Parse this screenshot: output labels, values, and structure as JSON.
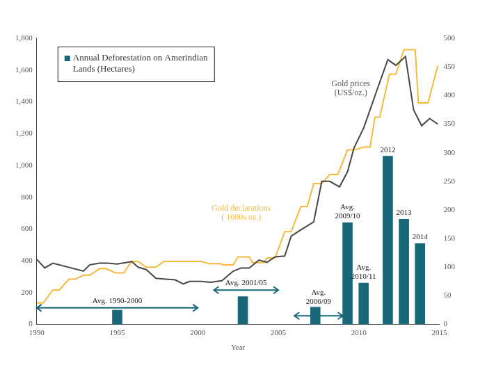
{
  "chart_data": {
    "type": "bar",
    "x_label": "Year",
    "xlim": [
      1990,
      2015
    ],
    "xticks": [
      1990,
      1995,
      2000,
      2005,
      2010,
      2015
    ],
    "ylim": [
      0,
      1800
    ],
    "yticks": [
      0,
      200,
      400,
      600,
      800,
      {
        "value": 1000,
        "label": "1,000"
      },
      {
        "value": 1200,
        "label": "1,200"
      },
      {
        "value": 1400,
        "label": "1,400"
      },
      {
        "value": 1600,
        "label": "1,600"
      },
      {
        "value": 1800,
        "label": "1,800"
      }
    ],
    "y2lim": [
      0,
      500
    ],
    "y2ticks": [
      0,
      50,
      100,
      150,
      200,
      250,
      300,
      350,
      400,
      450,
      500
    ],
    "grid": false,
    "legend": "upper left",
    "series": [
      {
        "name": "Annual Deforestation on Amerindian Lands (Hectares)",
        "type": "bar",
        "color": "#18687a",
        "x": [
          1995,
          2002.8,
          2007.3,
          2009.3,
          2010.3,
          2011.8,
          2012.8,
          2013.8
        ],
        "values": [
          90,
          175,
          108,
          640,
          260,
          1058,
          662,
          508
        ],
        "labels": [
          null,
          null,
          null,
          [
            "Avg.",
            "2009/10"
          ],
          [
            "Avg.",
            "2010/11"
          ],
          [
            "2012"
          ],
          [
            "2013"
          ],
          [
            "2014"
          ]
        ]
      },
      {
        "type": "line",
        "color": "#4b4542",
        "marker": "none",
        "line_style": "solid",
        "x": [
          1990,
          1990.5,
          1991,
          1992.9,
          1993.3,
          1993.9,
          1994.4,
          1995,
          1995.9,
          1996.3,
          1996.8,
          1997.4,
          1998,
          1998.6,
          1999.1,
          1999.5,
          2000.2,
          2000.8,
          2001.5,
          2002.2,
          2002.7,
          2003.2,
          2003.8,
          2004.3,
          2004.8,
          2005.4,
          2005.8,
          2006.4,
          2007.2,
          2007.7,
          2008.2,
          2008.8,
          2009.3,
          2009.7,
          2010.3,
          2010.7,
          2011.2,
          2011.8,
          2012.3,
          2012.9,
          2013.4,
          2013.9,
          2014.4,
          2014.9
        ],
        "values": [
          410,
          355,
          385,
          335,
          375,
          385,
          385,
          380,
          395,
          360,
          345,
          290,
          285,
          280,
          255,
          270,
          270,
          265,
          275,
          335,
          355,
          355,
          405,
          390,
          425,
          430,
          555,
          595,
          645,
          900,
          900,
          865,
          960,
          1110,
          1235,
          1350,
          1495,
          1665,
          1630,
          1685,
          1350,
          1250,
          1295,
          1260
        ]
      },
      {
        "type": "line",
        "axis": "y2",
        "color": "#f6b93b",
        "marker": "none",
        "line_style": "solid",
        "x": [
          1990,
          1990.4,
          1991,
          1991.4,
          1992,
          1992.4,
          1992.9,
          1993.3,
          1993.9,
          1994.3,
          1994.9,
          1995.4,
          1995.9,
          1996.3,
          1996.8,
          1997.4,
          1997.9,
          2000.2,
          2000.7,
          2001.4,
          2001.6,
          2002.2,
          2002.5,
          2003.2,
          2003.4,
          2004.1,
          2004.3,
          2004.8,
          2005.4,
          2005.8,
          2006.4,
          2006.8,
          2007.2,
          2007.7,
          2008.2,
          2008.7,
          2009.3,
          2009.8,
          2010.3,
          2010.7,
          2011,
          2011.3,
          2011.9,
          2012.3,
          2012.8,
          2013.5,
          2013.7,
          2014.3,
          2014.9
        ],
        "values": [
          37.5,
          37.5,
          60,
          60,
          79,
          79,
          86,
          86,
          97.5,
          97.5,
          90,
          90,
          110,
          110,
          100,
          100,
          110,
          110,
          106,
          106,
          104,
          104,
          118,
          118,
          108,
          108,
          116,
          116,
          162,
          162,
          206,
          206,
          246,
          246,
          262,
          262,
          305,
          305,
          310,
          310,
          362,
          362,
          437,
          437,
          480,
          480,
          387,
          387,
          452
        ]
      }
    ],
    "annotations": [
      {
        "text": [
          "Avg. 1990-2000"
        ],
        "x_range": [
          1990,
          2000
        ],
        "y": 104,
        "color": "#222222"
      },
      {
        "text": [
          "Avg. 2001/05"
        ],
        "x_range": [
          2001,
          2005
        ],
        "y": 216,
        "color": "#222222"
      },
      {
        "text": [
          "Avg.",
          "2006/09"
        ],
        "x_range": [
          2006,
          2009
        ],
        "y": 54,
        "text_y": 172,
        "color": "#222222"
      },
      {
        "text": [
          "Gold prices",
          "(US$/oz.)"
        ],
        "x": 2009.5,
        "y": 1485,
        "color": "#5e5654"
      },
      {
        "text": [
          "Gold declarations",
          "( 1000s oz.)"
        ],
        "x": 2002.7,
        "y": 700,
        "color": "#f6b93b"
      }
    ]
  }
}
